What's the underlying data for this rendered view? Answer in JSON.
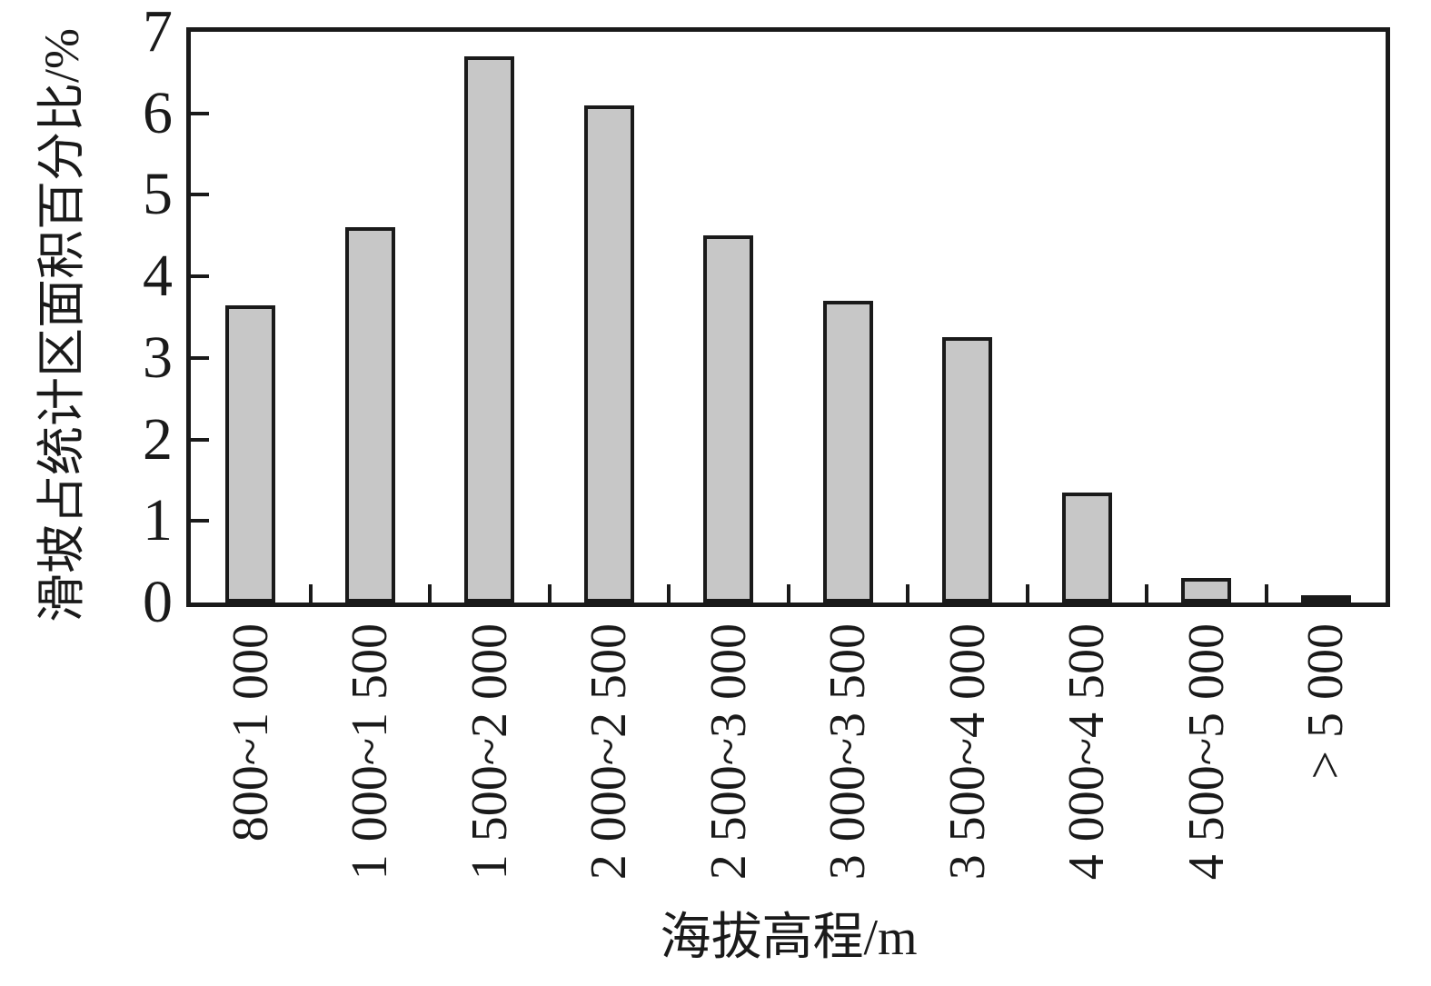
{
  "page": {
    "background": "#ffffff",
    "text_color": "#1a1a1a"
  },
  "chart_data": {
    "type": "bar",
    "title": "",
    "xlabel": "海拔高程/m",
    "ylabel": "滑坡占统计区面积百分比/%",
    "categories": [
      "800~1 000",
      "1 000~1 500",
      "1 500~2 000",
      "2 000~2 500",
      "2 500~3 000",
      "3 000~3 500",
      "3 500~4 000",
      "4 000~4 500",
      "4 500~5 000",
      "> 5 000"
    ],
    "values": [
      3.65,
      4.6,
      6.7,
      6.1,
      4.5,
      3.7,
      3.25,
      1.35,
      0.3,
      0.05
    ],
    "ylim": [
      0,
      7
    ],
    "yticks": [
      0,
      1,
      2,
      3,
      4,
      5,
      6,
      7
    ],
    "grid": false,
    "legend": "none",
    "ticks_direction": "in",
    "bar_fill": "#c7c7c7",
    "bar_stroke": "#1a1a1a",
    "axis_color": "#1a1a1a"
  }
}
